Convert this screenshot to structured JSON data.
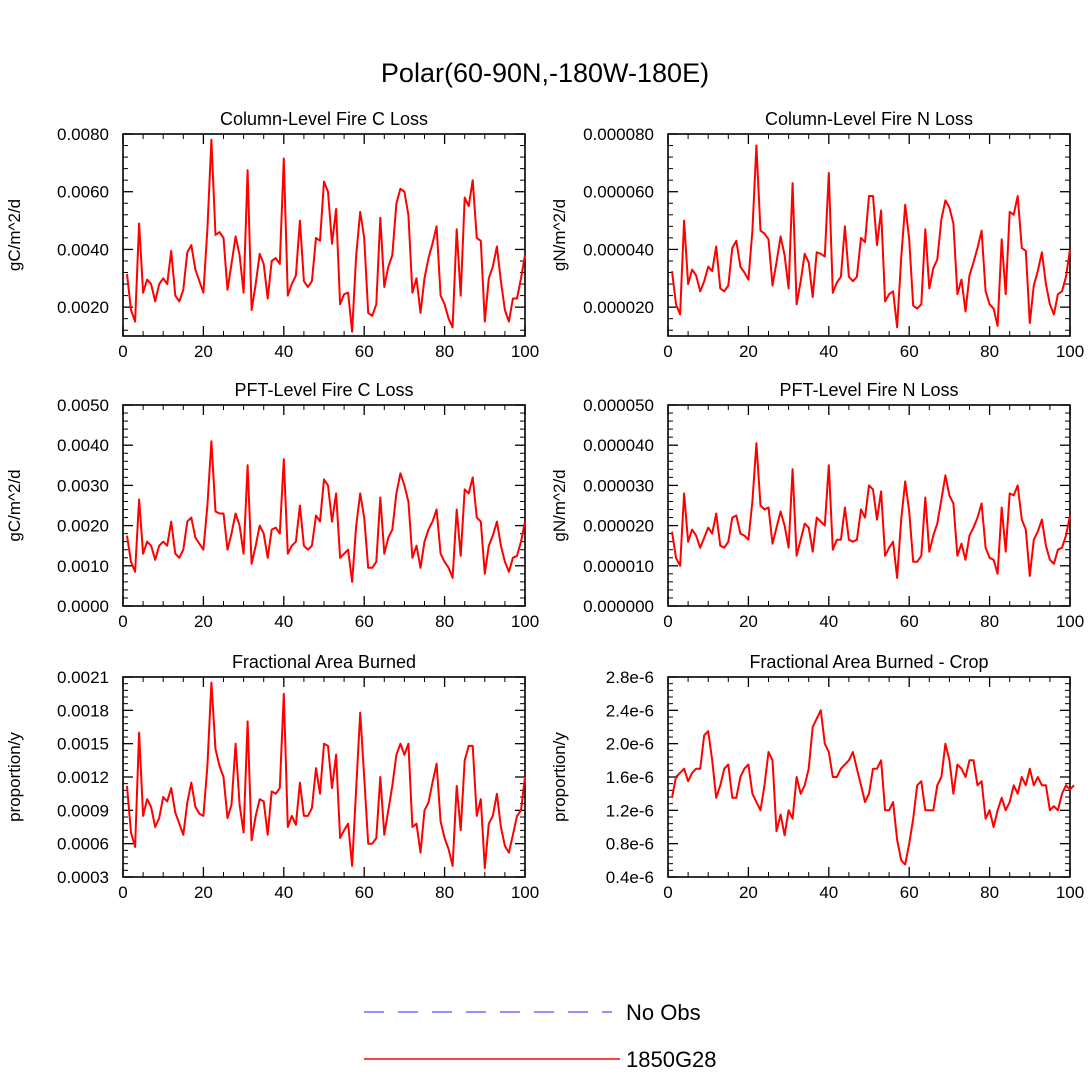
{
  "figure": {
    "title": "Polar(60-90N,-180W-180E)",
    "colors": {
      "model": "#ff0000",
      "obs": "#6b6bff",
      "axis": "#000000"
    }
  },
  "legend": [
    {
      "label": "No Obs",
      "style": "dashed",
      "color": "#6b6bff"
    },
    {
      "label": "1850G28",
      "style": "solid",
      "color": "#ff0000"
    }
  ],
  "chart_data": [
    {
      "type": "line",
      "title": "Column-Level Fire C Loss",
      "ylabel": "gC/m^2/d",
      "xlim": [
        0,
        100
      ],
      "ylim": [
        0.001,
        0.008
      ],
      "xticks": [
        0,
        20,
        40,
        60,
        80,
        100
      ],
      "yticks": [
        0.002,
        0.004,
        0.006,
        0.008
      ],
      "ytick_labels": [
        "0.0020",
        "0.0040",
        "0.0060",
        "0.0080"
      ],
      "series": [
        {
          "name": "1850G28",
          "values": [
            0.00315,
            0.0019,
            0.0015,
            0.0049,
            0.0025,
            0.00295,
            0.0028,
            0.0022,
            0.0028,
            0.003,
            0.0028,
            0.00395,
            0.0024,
            0.0022,
            0.0026,
            0.0039,
            0.00415,
            0.0033,
            0.0029,
            0.0025,
            0.0047,
            0.0078,
            0.0045,
            0.0046,
            0.0044,
            0.0026,
            0.0035,
            0.00445,
            0.0038,
            0.0025,
            0.00675,
            0.0019,
            0.0028,
            0.00385,
            0.0035,
            0.0023,
            0.0036,
            0.0037,
            0.0035,
            0.00715,
            0.0024,
            0.0028,
            0.0031,
            0.005,
            0.0029,
            0.0027,
            0.0029,
            0.0044,
            0.0043,
            0.00635,
            0.006,
            0.0042,
            0.0054,
            0.0021,
            0.00245,
            0.0025,
            0.00115,
            0.0038,
            0.0053,
            0.0044,
            0.0018,
            0.0017,
            0.0021,
            0.0051,
            0.0027,
            0.0034,
            0.0038,
            0.0056,
            0.0061,
            0.006,
            0.0052,
            0.0025,
            0.003,
            0.0018,
            0.003,
            0.0037,
            0.0042,
            0.0048,
            0.0024,
            0.0021,
            0.0016,
            0.0013,
            0.0047,
            0.0024,
            0.0058,
            0.0055,
            0.0064,
            0.0044,
            0.0043,
            0.0015,
            0.003,
            0.0034,
            0.0041,
            0.0029,
            0.0019,
            0.0015,
            0.0023,
            0.0023,
            0.003,
            0.0038
          ]
        }
      ]
    },
    {
      "type": "line",
      "title": "Column-Level Fire N Loss",
      "ylabel": "gN/m^2/d",
      "xlim": [
        0,
        100
      ],
      "ylim": [
        1e-05,
        8e-05
      ],
      "xticks": [
        0,
        20,
        40,
        60,
        80,
        100
      ],
      "yticks": [
        2e-05,
        4e-05,
        6e-05,
        8e-05
      ],
      "ytick_labels": [
        "0.000020",
        "0.000040",
        "0.000060",
        "0.000080"
      ],
      "series": [
        {
          "name": "1850G28",
          "values": [
            3.25e-05,
            2.1e-05,
            1.75e-05,
            5e-05,
            2.8e-05,
            3.3e-05,
            3.1e-05,
            2.55e-05,
            2.9e-05,
            3.4e-05,
            3.25e-05,
            4.1e-05,
            2.65e-05,
            2.55e-05,
            2.75e-05,
            4.05e-05,
            4.3e-05,
            3.4e-05,
            3.2e-05,
            2.95e-05,
            4.65e-05,
            7.6e-05,
            4.65e-05,
            4.55e-05,
            4.35e-05,
            2.75e-05,
            3.55e-05,
            4.45e-05,
            3.8e-05,
            2.65e-05,
            6.3e-05,
            2.1e-05,
            2.9e-05,
            3.85e-05,
            3.55e-05,
            2.35e-05,
            3.9e-05,
            3.85e-05,
            3.75e-05,
            6.65e-05,
            2.5e-05,
            2.85e-05,
            3.05e-05,
            4.8e-05,
            3.05e-05,
            2.9e-05,
            3.05e-05,
            4.4e-05,
            4.25e-05,
            5.85e-05,
            5.85e-05,
            4.15e-05,
            5.35e-05,
            2.2e-05,
            2.45e-05,
            2.55e-05,
            1.3e-05,
            3.7e-05,
            5.55e-05,
            4.35e-05,
            2.05e-05,
            1.95e-05,
            2.1e-05,
            4.7e-05,
            2.65e-05,
            3.35e-05,
            3.65e-05,
            5.05e-05,
            5.7e-05,
            5.45e-05,
            4.9e-05,
            2.45e-05,
            2.95e-05,
            1.85e-05,
            3.1e-05,
            3.55e-05,
            4.05e-05,
            4.65e-05,
            2.55e-05,
            2.1e-05,
            1.95e-05,
            1.35e-05,
            4.35e-05,
            2.45e-05,
            5.3e-05,
            5.2e-05,
            5.85e-05,
            4.05e-05,
            3.95e-05,
            1.45e-05,
            2.75e-05,
            3.25e-05,
            3.9e-05,
            2.8e-05,
            2.1e-05,
            1.75e-05,
            2.45e-05,
            2.55e-05,
            3.05e-05,
            4e-05
          ]
        }
      ]
    },
    {
      "type": "line",
      "title": "PFT-Level Fire C Loss",
      "ylabel": "gC/m^2/d",
      "xlim": [
        0,
        100
      ],
      "ylim": [
        0,
        0.005
      ],
      "xticks": [
        0,
        20,
        40,
        60,
        80,
        100
      ],
      "yticks": [
        0,
        0.001,
        0.002,
        0.003,
        0.004,
        0.005
      ],
      "ytick_labels": [
        "0.0000",
        "0.0010",
        "0.0020",
        "0.0030",
        "0.0040",
        "0.0050"
      ],
      "series": [
        {
          "name": "1850G28",
          "values": [
            0.00175,
            0.0011,
            0.00085,
            0.00265,
            0.0013,
            0.0016,
            0.0015,
            0.00115,
            0.0015,
            0.0016,
            0.0015,
            0.0021,
            0.0013,
            0.0012,
            0.0014,
            0.0021,
            0.0022,
            0.0017,
            0.00155,
            0.0014,
            0.0025,
            0.0041,
            0.00235,
            0.0023,
            0.0023,
            0.0014,
            0.0018,
            0.0023,
            0.002,
            0.0013,
            0.0035,
            0.00105,
            0.0015,
            0.002,
            0.0018,
            0.0012,
            0.0019,
            0.00195,
            0.0018,
            0.00365,
            0.0013,
            0.0015,
            0.0016,
            0.0025,
            0.0015,
            0.0014,
            0.0015,
            0.00225,
            0.0021,
            0.00315,
            0.003,
            0.0021,
            0.0028,
            0.0012,
            0.0013,
            0.0014,
            0.0006,
            0.002,
            0.0028,
            0.0022,
            0.00095,
            0.00095,
            0.0011,
            0.0027,
            0.0013,
            0.0017,
            0.0019,
            0.0028,
            0.0033,
            0.003,
            0.0026,
            0.0012,
            0.0015,
            0.00095,
            0.0016,
            0.0019,
            0.0021,
            0.0024,
            0.0013,
            0.0011,
            0.00095,
            0.0007,
            0.0024,
            0.00125,
            0.0029,
            0.0028,
            0.0032,
            0.0022,
            0.0021,
            0.0008,
            0.0015,
            0.00175,
            0.0021,
            0.0015,
            0.0011,
            0.00085,
            0.0012,
            0.00125,
            0.0016,
            0.0021
          ]
        }
      ]
    },
    {
      "type": "line",
      "title": "PFT-Level Fire N Loss",
      "ylabel": "gN/m^2/d",
      "xlim": [
        0,
        100
      ],
      "ylim": [
        0,
        5e-05
      ],
      "xticks": [
        0,
        20,
        40,
        60,
        80,
        100
      ],
      "yticks": [
        0,
        1e-05,
        2e-05,
        3e-05,
        4e-05,
        5e-05
      ],
      "ytick_labels": [
        "0.000000",
        "0.000010",
        "0.000020",
        "0.000030",
        "0.000040",
        "0.000050"
      ],
      "series": [
        {
          "name": "1850G28",
          "values": [
            1.85e-05,
            1.2e-05,
            1e-05,
            2.8e-05,
            1.6e-05,
            1.9e-05,
            1.75e-05,
            1.45e-05,
            1.7e-05,
            1.95e-05,
            1.8e-05,
            2.3e-05,
            1.5e-05,
            1.45e-05,
            1.6e-05,
            2.2e-05,
            2.25e-05,
            1.8e-05,
            1.75e-05,
            1.65e-05,
            2.6e-05,
            4.05e-05,
            2.5e-05,
            2.4e-05,
            2.45e-05,
            1.55e-05,
            1.95e-05,
            2.35e-05,
            2e-05,
            1.45e-05,
            3.4e-05,
            1.25e-05,
            1.65e-05,
            2.05e-05,
            1.95e-05,
            1.35e-05,
            2.2e-05,
            2.1e-05,
            2e-05,
            3.5e-05,
            1.4e-05,
            1.65e-05,
            1.65e-05,
            2.45e-05,
            1.65e-05,
            1.6e-05,
            1.65e-05,
            2.4e-05,
            2.2e-05,
            3e-05,
            2.9e-05,
            2.15e-05,
            2.85e-05,
            1.25e-05,
            1.45e-05,
            1.6e-05,
            7e-06,
            2.15e-05,
            3.1e-05,
            2.35e-05,
            1.1e-05,
            1.1e-05,
            1.25e-05,
            2.7e-05,
            1.35e-05,
            1.75e-05,
            2.05e-05,
            2.65e-05,
            3.25e-05,
            2.75e-05,
            2.55e-05,
            1.25e-05,
            1.55e-05,
            1.15e-05,
            1.75e-05,
            1.95e-05,
            2.2e-05,
            2.55e-05,
            1.45e-05,
            1.2e-05,
            1.15e-05,
            8e-06,
            2.45e-05,
            1.35e-05,
            2.8e-05,
            2.75e-05,
            3e-05,
            2.15e-05,
            1.9e-05,
            7.5e-06,
            1.65e-05,
            1.85e-05,
            2.15e-05,
            1.5e-05,
            1.15e-05,
            1.05e-05,
            1.4e-05,
            1.45e-05,
            1.75e-05,
            2.25e-05
          ]
        }
      ]
    },
    {
      "type": "line",
      "title": "Fractional Area Burned",
      "ylabel": "proportion/y",
      "xlim": [
        0,
        100
      ],
      "ylim": [
        0.0003,
        0.0021
      ],
      "xticks": [
        0,
        20,
        40,
        60,
        80,
        100
      ],
      "yticks": [
        0.0003,
        0.0006,
        0.0009,
        0.0012,
        0.0015,
        0.0018,
        0.0021
      ],
      "ytick_labels": [
        "0.0003",
        "0.0006",
        "0.0009",
        "0.0012",
        "0.0015",
        "0.0018",
        "0.0021"
      ],
      "series": [
        {
          "name": "1850G28",
          "values": [
            0.00112,
            0.0007,
            0.00057,
            0.0016,
            0.00085,
            0.001,
            0.00093,
            0.00075,
            0.00083,
            0.00102,
            0.00098,
            0.0011,
            0.00088,
            0.00078,
            0.00068,
            0.00097,
            0.00115,
            0.00093,
            0.00087,
            0.00085,
            0.0013,
            0.00205,
            0.00145,
            0.0013,
            0.0012,
            0.00083,
            0.00095,
            0.0015,
            0.00095,
            0.0007,
            0.0017,
            0.00063,
            0.00085,
            0.001,
            0.00098,
            0.00068,
            0.00107,
            0.00105,
            0.0011,
            0.00195,
            0.00075,
            0.00085,
            0.00077,
            0.00115,
            0.00085,
            0.00085,
            0.00092,
            0.00128,
            0.00105,
            0.0015,
            0.00148,
            0.0011,
            0.0014,
            0.00065,
            0.00072,
            0.00078,
            0.0004,
            0.0011,
            0.00178,
            0.0012,
            0.0006,
            0.0006,
            0.00065,
            0.0012,
            0.00068,
            0.0009,
            0.00112,
            0.0014,
            0.0015,
            0.0014,
            0.0015,
            0.00075,
            0.00078,
            0.00052,
            0.0009,
            0.00097,
            0.00115,
            0.00132,
            0.0008,
            0.00065,
            0.00055,
            0.0004,
            0.00112,
            0.00072,
            0.00135,
            0.00148,
            0.00148,
            0.00085,
            0.001,
            0.00038,
            0.00078,
            0.00085,
            0.00105,
            0.00075,
            0.00058,
            0.00052,
            0.00068,
            0.00085,
            0.0009,
            0.0012
          ]
        }
      ]
    },
    {
      "type": "line",
      "title": "Fractional Area Burned - Crop",
      "ylabel": "proportion/y",
      "xlim": [
        0,
        100
      ],
      "ylim": [
        4e-07,
        2.8e-06
      ],
      "xticks": [
        0,
        20,
        40,
        60,
        80,
        100
      ],
      "yticks": [
        4e-07,
        8e-07,
        1.2e-06,
        1.6e-06,
        2e-06,
        2.4e-06,
        2.8e-06
      ],
      "ytick_labels": [
        "0.4e-6",
        "0.8e-6",
        "1.2e-6",
        "1.6e-6",
        "2.0e-6",
        "2.4e-6",
        "2.8e-6"
      ],
      "series": [
        {
          "name": "1850G28",
          "values": [
            1.35e-06,
            1.6e-06,
            1.65e-06,
            1.7e-06,
            1.55e-06,
            1.65e-06,
            1.7e-06,
            1.7e-06,
            2.1e-06,
            2.15e-06,
            1.8e-06,
            1.35e-06,
            1.5e-06,
            1.7e-06,
            1.75e-06,
            1.35e-06,
            1.35e-06,
            1.6e-06,
            1.7e-06,
            1.75e-06,
            1.4e-06,
            1.3e-06,
            1.2e-06,
            1.5e-06,
            1.9e-06,
            1.8e-06,
            9.5e-07,
            1.15e-06,
            9e-07,
            1.2e-06,
            1.1e-06,
            1.6e-06,
            1.4e-06,
            1.5e-06,
            1.7e-06,
            2.2e-06,
            2.3e-06,
            2.4e-06,
            2e-06,
            1.9e-06,
            1.6e-06,
            1.6e-06,
            1.7e-06,
            1.75e-06,
            1.8e-06,
            1.9e-06,
            1.7e-06,
            1.5e-06,
            1.3e-06,
            1.4e-06,
            1.7e-06,
            1.7e-06,
            1.8e-06,
            1.2e-06,
            1.2e-06,
            1.3e-06,
            8.5e-07,
            6e-07,
            5.5e-07,
            8e-07,
            1.1e-06,
            1.5e-06,
            1.55e-06,
            1.2e-06,
            1.2e-06,
            1.2e-06,
            1.5e-06,
            1.6e-06,
            2e-06,
            1.8e-06,
            1.4e-06,
            1.75e-06,
            1.7e-06,
            1.6e-06,
            1.8e-06,
            1.8e-06,
            1.5e-06,
            1.55e-06,
            1.1e-06,
            1.2e-06,
            1e-06,
            1.2e-06,
            1.35e-06,
            1.2e-06,
            1.3e-06,
            1.5e-06,
            1.4e-06,
            1.6e-06,
            1.5e-06,
            1.7e-06,
            1.5e-06,
            1.6e-06,
            1.5e-06,
            1.5e-06,
            1.2e-06,
            1.25e-06,
            1.2e-06,
            1.4e-06,
            1.5e-06,
            1.45e-06,
            1.5e-06
          ]
        }
      ]
    }
  ]
}
